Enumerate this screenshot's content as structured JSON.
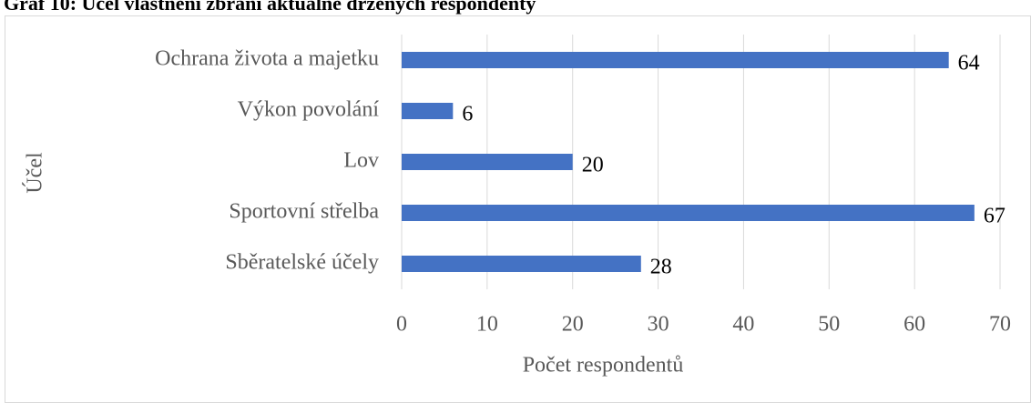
{
  "chart_data": {
    "type": "bar",
    "orientation": "horizontal",
    "title": "Graf 10: Účel vlastnění zbraní aktuálně držených respondenty",
    "x_label": "Počet respondentů",
    "y_label": "Účel",
    "categories": [
      "Ochrana života a majetku",
      "Výkon povolání",
      "Lov",
      "Sportovní střelba",
      "Sběratelské účely"
    ],
    "values": [
      64,
      6,
      20,
      67,
      28
    ],
    "color": "#4472c4",
    "xlim": [
      0,
      70
    ],
    "xticks": [
      0,
      10,
      20,
      30,
      40,
      50,
      60,
      70
    ],
    "grid": true
  }
}
